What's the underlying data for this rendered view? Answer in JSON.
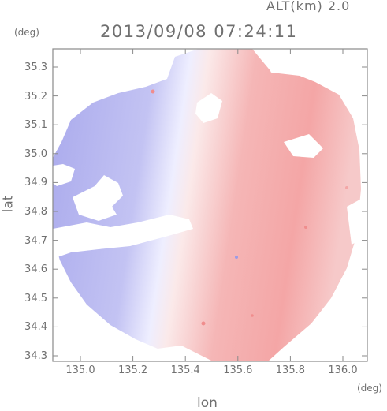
{
  "header": {
    "altitude_label": "ALT(km) 2.0",
    "timestamp": "2013/09/08 07:24:11"
  },
  "axes": {
    "y_unit": "(deg)",
    "x_unit": "(deg)",
    "y_label": "lat",
    "x_label": "lon",
    "y_ticks": [
      "35.3",
      "35.2",
      "35.1",
      "35.0",
      "34.9",
      "34.8",
      "34.7",
      "34.6",
      "34.5",
      "34.4",
      "34.3"
    ],
    "x_ticks": [
      "135.0",
      "135.2",
      "135.4",
      "135.6",
      "135.8",
      "136.0"
    ]
  },
  "colors": {
    "frame": "#8a8a8a",
    "toward": "#a8a8ec",
    "away": "#f29c9c",
    "near_zero": "#eeeeff"
  }
}
